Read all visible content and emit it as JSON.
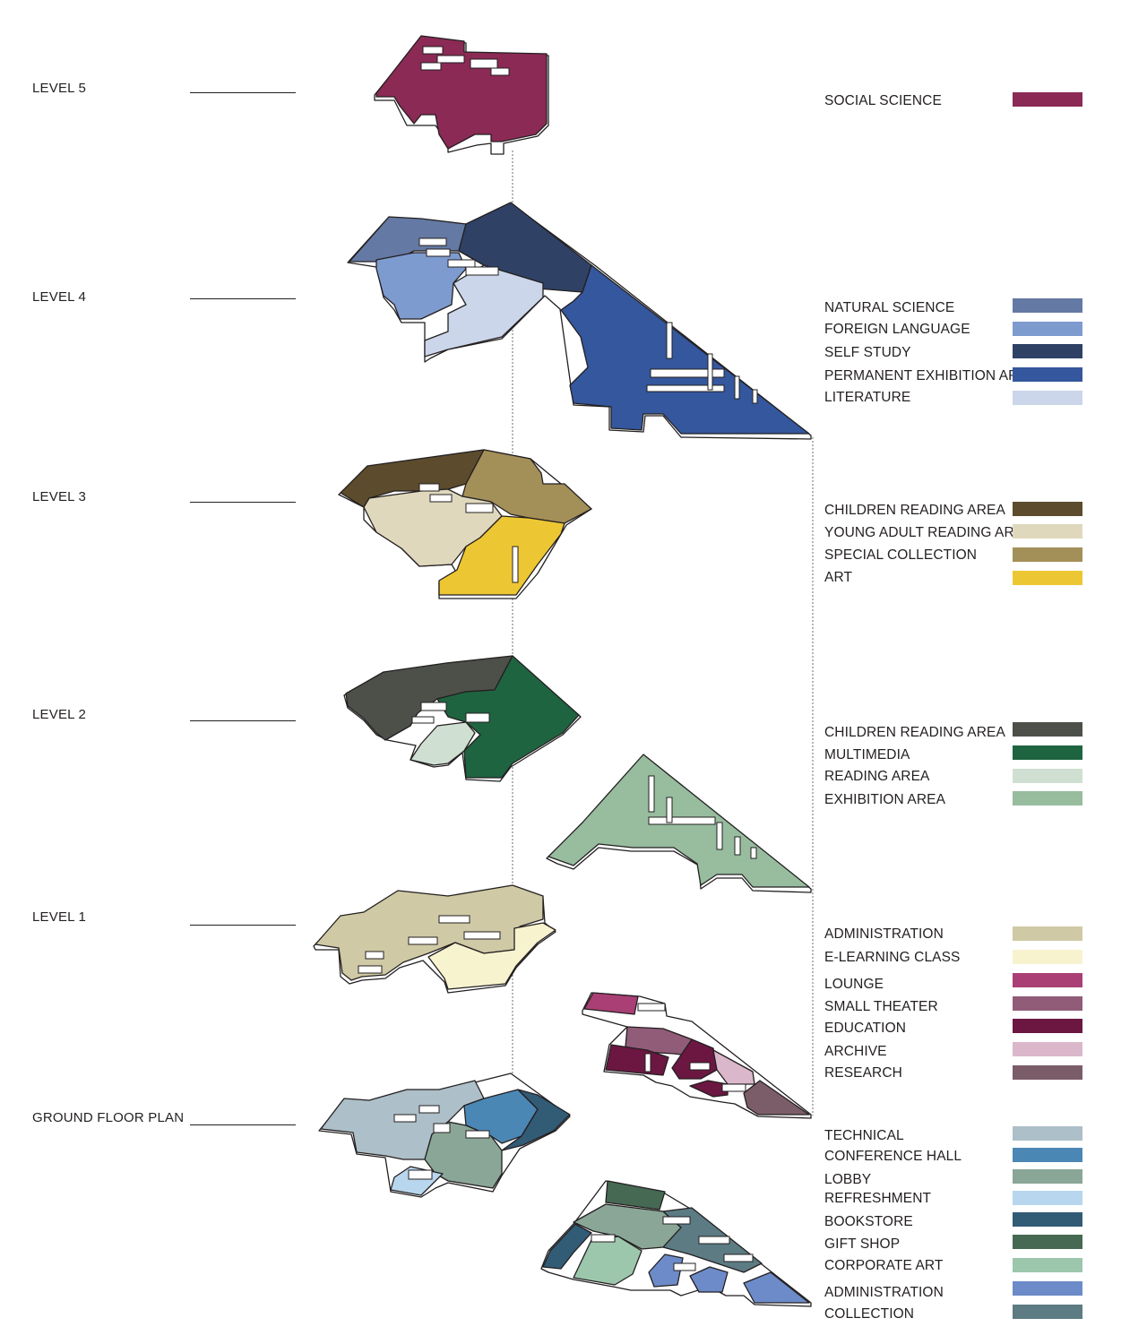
{
  "levels": [
    {
      "label": "LEVEL 5"
    },
    {
      "label": "LEVEL 4"
    },
    {
      "label": "LEVEL 3"
    },
    {
      "label": "LEVEL 2"
    },
    {
      "label": "LEVEL 1"
    },
    {
      "label": "GROUND FLOOR PLAN"
    }
  ],
  "legend": {
    "level5": [
      {
        "label": "SOCIAL SCIENCE",
        "color": "#8b2a55"
      }
    ],
    "level4": [
      {
        "label": "NATURAL SCIENCE",
        "color": "#6479a3"
      },
      {
        "label": "FOREIGN LANGUAGE",
        "color": "#7e9bcf"
      },
      {
        "label": "SELF STUDY",
        "color": "#2f4265"
      },
      {
        "label": "PERMANENT EXHIBITION AREA",
        "color": "#34579d"
      },
      {
        "label": "LITERATURE",
        "color": "#cbd6ea"
      }
    ],
    "level3": [
      {
        "label": "CHILDREN READING AREA",
        "color": "#5c4c2d"
      },
      {
        "label": "YOUNG ADULT READING AREA",
        "color": "#dfd8bd"
      },
      {
        "label": "SPECIAL COLLECTION",
        "color": "#a38f58"
      },
      {
        "label": "ART",
        "color": "#edc733"
      }
    ],
    "level2": [
      {
        "label": "CHILDREN READING AREA",
        "color": "#4c5049"
      },
      {
        "label": "MULTIMEDIA",
        "color": "#1e6440"
      },
      {
        "label": "READING AREA",
        "color": "#cfe0d2"
      },
      {
        "label": "EXHIBITION AREA",
        "color": "#97bc9e"
      }
    ],
    "level1": [
      {
        "label": "ADMINISTRATION",
        "color": "#cfc9a5"
      },
      {
        "label": "E-LEARNING CLASS",
        "color": "#f8f3cf"
      },
      {
        "label": "LOUNGE",
        "color": "#a93f74"
      },
      {
        "label": "SMALL THEATER",
        "color": "#915c78"
      },
      {
        "label": "EDUCATION",
        "color": "#6b1742"
      },
      {
        "label": "ARCHIVE",
        "color": "#dbb7cb"
      },
      {
        "label": "RESEARCH",
        "color": "#7b5d69"
      }
    ],
    "ground": [
      {
        "label": "TECHNICAL",
        "color": "#adbfc8"
      },
      {
        "label": "CONFERENCE HALL",
        "color": "#4b87b5"
      },
      {
        "label": "LOBBY",
        "color": "#8aa697"
      },
      {
        "label": "REFRESHMENT",
        "color": "#b8d6ee"
      },
      {
        "label": "BOOKSTORE",
        "color": "#325b76"
      },
      {
        "label": "GIFT SHOP",
        "color": "#456952"
      },
      {
        "label": "CORPORATE ART",
        "color": "#9cc7ac"
      },
      {
        "label": "ADMINISTRATION",
        "color": "#6c8bc8"
      },
      {
        "label": "COLLECTION",
        "color": "#5c7b83"
      }
    ]
  }
}
